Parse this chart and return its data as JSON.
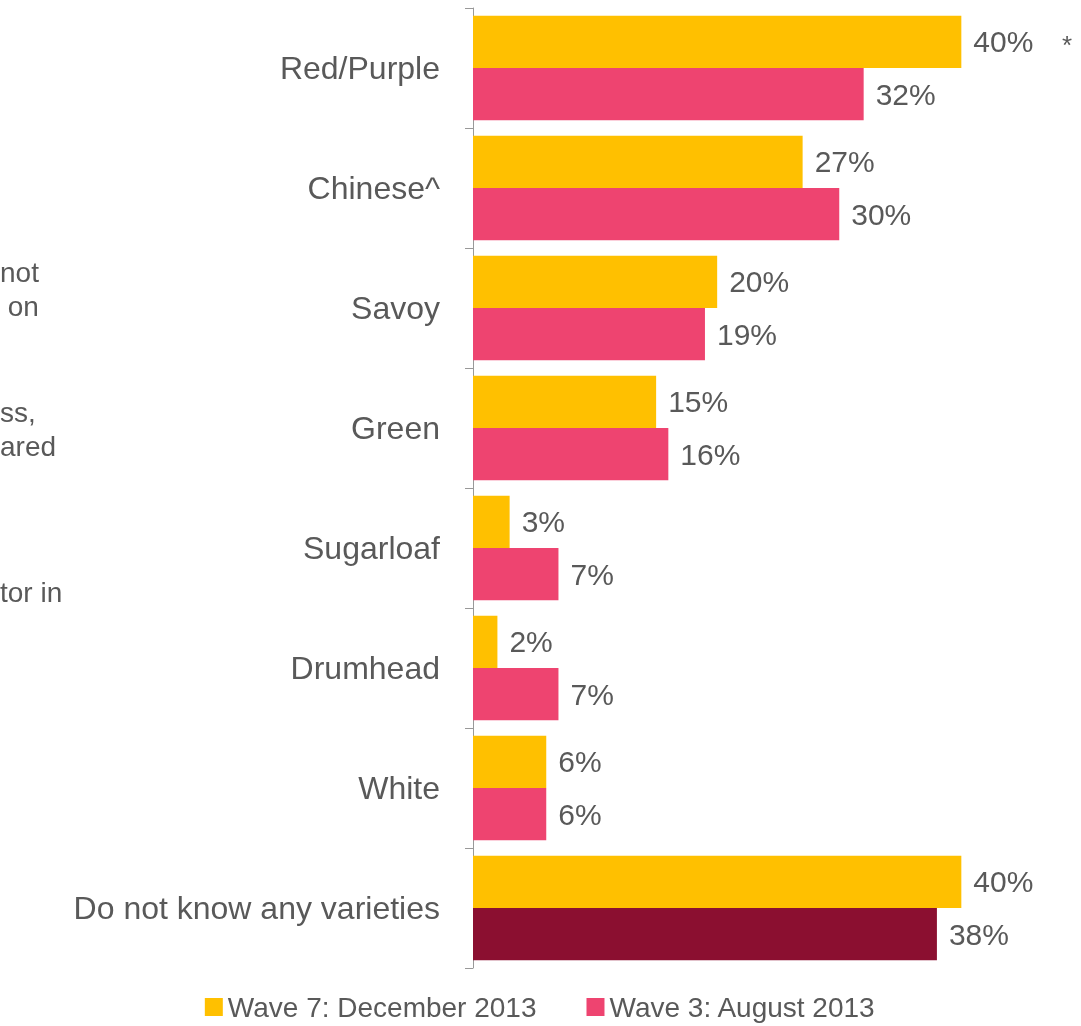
{
  "chart_data": {
    "type": "bar",
    "orientation": "horizontal",
    "categories": [
      "Red/Purple",
      "Chinese^",
      "Savoy",
      "Green",
      "Sugarloaf",
      "Drumhead",
      "White",
      "Do not know any varieties"
    ],
    "series": [
      {
        "name": "Wave 7: December 2013",
        "color": "#ffc000",
        "values": [
          40,
          27,
          20,
          15,
          3,
          2,
          6,
          40
        ],
        "value_labels": [
          "40%",
          "27%",
          "20%",
          "15%",
          "3%",
          "2%",
          "6%",
          "40%"
        ]
      },
      {
        "name": "Wave 3: August 2013",
        "color": "#ee4470",
        "colors": [
          "#ee4470",
          "#ee4470",
          "#ee4470",
          "#ee4470",
          "#ee4470",
          "#ee4470",
          "#ee4470",
          "#8b0f30"
        ],
        "values": [
          32,
          30,
          19,
          16,
          7,
          7,
          6,
          38
        ],
        "value_labels": [
          "32%",
          "30%",
          "19%",
          "16%",
          "7%",
          "7%",
          "6%",
          "38%"
        ]
      }
    ],
    "legend": "bottom",
    "grid": false,
    "annotations": [
      "*",
      "not\n on",
      "ss,\nared",
      "tor in"
    ]
  }
}
